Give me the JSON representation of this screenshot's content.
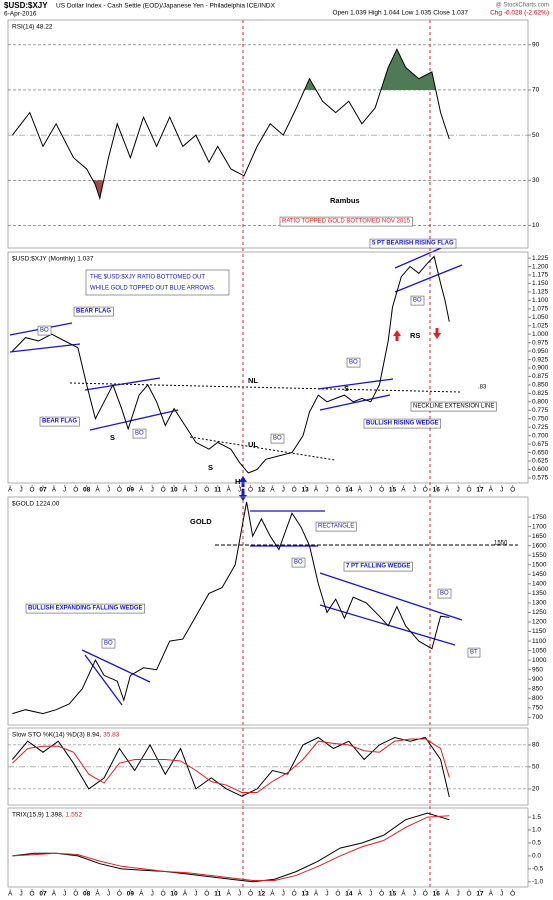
{
  "header": {
    "symbol": "$USD:$XJY",
    "description": "US Dollar Index - Cash Settle (EOD)/Japanese Yen - Philadelphia ICE/INDX",
    "date": "6-Apr-2016",
    "quote": "Open 1.039 High 1.044 Low 1.035 Close 1.037",
    "change": "Chg -0.028 (-2.62%)",
    "watermark": "@ StockCharts.com"
  },
  "chart_data": [
    {
      "type": "line",
      "label": "RSI(14) 48.22",
      "ylim": [
        0,
        101
      ],
      "yticks": [
        90,
        70,
        50,
        30,
        10
      ],
      "grid": true,
      "overbought_color": "#4e7a55",
      "oversold_color": "#a04a4a",
      "x": [
        2006.3,
        2006.7,
        2007.0,
        2007.3,
        2007.7,
        2008.0,
        2008.2,
        2008.3,
        2008.5,
        2008.7,
        2009.0,
        2009.3,
        2009.6,
        2009.9,
        2010.2,
        2010.5,
        2010.8,
        2011.0,
        2011.3,
        2011.6,
        2011.9,
        2012.2,
        2012.5,
        2012.8,
        2013.1,
        2013.4,
        2013.7,
        2014.0,
        2014.3,
        2014.6,
        2014.9,
        2015.1,
        2015.3,
        2015.6,
        2015.9,
        2016.1,
        2016.3
      ],
      "series": [
        {
          "color": "#000000",
          "values": [
            50,
            60,
            45,
            55,
            40,
            35,
            28,
            22,
            40,
            55,
            40,
            58,
            45,
            58,
            45,
            50,
            38,
            45,
            35,
            32,
            45,
            55,
            50,
            62,
            75,
            65,
            60,
            65,
            55,
            62,
            80,
            88,
            80,
            75,
            78,
            60,
            48.22
          ]
        }
      ],
      "annotations": [
        "Rambus",
        "RATIO TOPPED GOLD BOTTOMED NOV 2015"
      ]
    },
    {
      "type": "line",
      "label": "$USD:$XJY (Monthly) 1.037",
      "ylim": [
        0.56,
        1.243
      ],
      "yticks": [
        1.225,
        {
          "value": 1.2,
          "label": "1.200"
        },
        1.175,
        {
          "value": 1.15,
          "label": "1.150"
        },
        1.125,
        {
          "value": 1.1,
          "label": "1.100"
        },
        1.075,
        {
          "value": 1.05,
          "label": "1.050"
        },
        1.025,
        {
          "value": 1.0,
          "label": "1.000"
        },
        0.975,
        {
          "value": 0.95,
          "label": "0.950"
        },
        0.925,
        {
          "value": 0.9,
          "label": "0.900"
        },
        0.875,
        {
          "value": 0.85,
          "label": "0.850"
        },
        0.825,
        {
          "value": 0.8,
          "label": "0.800"
        },
        0.775,
        {
          "value": 0.75,
          "label": "0.750"
        },
        0.725,
        {
          "value": 0.7,
          "label": "0.700"
        },
        0.675,
        {
          "value": 0.65,
          "label": "0.650"
        },
        0.625,
        {
          "value": 0.6,
          "label": "0.600"
        },
        0.575
      ],
      "xlim": [
        2006.2,
        2018.1
      ],
      "xticks": [
        {
          "value": 2006.25,
          "label": "A"
        },
        {
          "value": 2006.5,
          "label": "J"
        },
        {
          "value": 2006.75,
          "label": "O"
        },
        {
          "value": 2007,
          "label": "07"
        },
        {
          "value": 2007.25,
          "label": "A"
        },
        {
          "value": 2007.5,
          "label": "J"
        },
        {
          "value": 2007.75,
          "label": "O"
        },
        {
          "value": 2008,
          "label": "08"
        },
        {
          "value": 2008.25,
          "label": "A"
        },
        {
          "value": 2008.5,
          "label": "J"
        },
        {
          "value": 2008.75,
          "label": "O"
        },
        {
          "value": 2009,
          "label": "09"
        },
        {
          "value": 2009.25,
          "label": "A"
        },
        {
          "value": 2009.5,
          "label": "J"
        },
        {
          "value": 2009.75,
          "label": "O"
        },
        {
          "value": 2010,
          "label": "10"
        },
        {
          "value": 2010.25,
          "label": "A"
        },
        {
          "value": 2010.5,
          "label": "J"
        },
        {
          "value": 2010.75,
          "label": "O"
        },
        {
          "value": 2011,
          "label": "11"
        },
        {
          "value": 2011.25,
          "label": "A"
        },
        {
          "value": 2011.5,
          "label": "J"
        },
        {
          "value": 2011.75,
          "label": "O"
        },
        {
          "value": 2012,
          "label": "12"
        },
        {
          "value": 2012.25,
          "label": "A"
        },
        {
          "value": 2012.5,
          "label": "J"
        },
        {
          "value": 2012.75,
          "label": "O"
        },
        {
          "value": 2013,
          "label": "13"
        },
        {
          "value": 2013.25,
          "label": "A"
        },
        {
          "value": 2013.5,
          "label": "J"
        },
        {
          "value": 2013.75,
          "label": "O"
        },
        {
          "value": 2014,
          "label": "14"
        },
        {
          "value": 2014.25,
          "label": "A"
        },
        {
          "value": 2014.5,
          "label": "J"
        },
        {
          "value": 2014.75,
          "label": "O"
        },
        {
          "value": 2015,
          "label": "15"
        },
        {
          "value": 2015.25,
          "label": "A"
        },
        {
          "value": 2015.5,
          "label": "J"
        },
        {
          "value": 2015.75,
          "label": "O"
        },
        {
          "value": 2016,
          "label": "16"
        },
        {
          "value": 2016.25,
          "label": "A"
        },
        {
          "value": 2016.5,
          "label": "J"
        },
        {
          "value": 2016.75,
          "label": "O"
        },
        {
          "value": 2017,
          "label": "17"
        },
        {
          "value": 2017.25,
          "label": "A"
        },
        {
          "value": 2017.5,
          "label": "J"
        },
        {
          "value": 2017.75,
          "label": "O"
        }
      ],
      "x": [
        2006.3,
        2006.6,
        2006.9,
        2007.2,
        2007.5,
        2007.8,
        2008.0,
        2008.2,
        2008.4,
        2008.6,
        2008.8,
        2008.95,
        2009.2,
        2009.4,
        2009.6,
        2009.8,
        2010.0,
        2010.3,
        2010.5,
        2010.8,
        2011.0,
        2011.3,
        2011.5,
        2011.7,
        2011.9,
        2012.1,
        2012.4,
        2012.7,
        2012.95,
        2013.1,
        2013.3,
        2013.5,
        2013.7,
        2013.9,
        2014.1,
        2014.3,
        2014.5,
        2014.7,
        2014.9,
        2015.0,
        2015.2,
        2015.4,
        2015.6,
        2015.8,
        2015.95,
        2016.1,
        2016.2,
        2016.3
      ],
      "series": [
        {
          "color": "#000000",
          "values": [
            0.95,
            0.99,
            0.98,
            1.0,
            0.98,
            0.96,
            0.85,
            0.75,
            0.8,
            0.85,
            0.78,
            0.72,
            0.82,
            0.85,
            0.8,
            0.73,
            0.78,
            0.72,
            0.68,
            0.66,
            0.68,
            0.66,
            0.62,
            0.59,
            0.6,
            0.63,
            0.64,
            0.65,
            0.7,
            0.77,
            0.82,
            0.8,
            0.81,
            0.82,
            0.8,
            0.81,
            0.8,
            0.85,
            0.98,
            1.08,
            1.17,
            1.2,
            1.18,
            1.21,
            1.23,
            1.15,
            1.1,
            1.037
          ]
        }
      ],
      "annotations": [
        "THE $USD:$XJY RATIO BOTTOMED OUT",
        "WHILE GOLD TOPPED OUT BLUE ARROWS.",
        "BEAR FLAG",
        "BO",
        "BEAR FLAG",
        "S",
        "BO",
        "NL",
        "S",
        "UL",
        "H",
        "BO",
        "BO",
        "S",
        "BULLISH RISING WEDGE",
        "NECKLINE EXTENSION LINE",
        ".83",
        "5 PT BEARISH RISING FLAG",
        "BO",
        "RS"
      ]
    },
    {
      "type": "line",
      "label": "$GOLD 1224.00",
      "ylim": [
        660,
        1855
      ],
      "yticks": [
        1750,
        1700,
        1650,
        1600,
        1550,
        1500,
        1450,
        1400,
        1350,
        1300,
        1250,
        1200,
        1150,
        1100,
        1050,
        1000,
        950,
        900,
        850,
        800,
        750,
        700
      ],
      "x": [
        2006.3,
        2006.6,
        2007.0,
        2007.3,
        2007.6,
        2007.9,
        2008.2,
        2008.4,
        2008.7,
        2008.85,
        2009.0,
        2009.3,
        2009.6,
        2009.9,
        2010.2,
        2010.5,
        2010.8,
        2011.1,
        2011.4,
        2011.66,
        2011.8,
        2012.0,
        2012.2,
        2012.4,
        2012.7,
        2012.9,
        2013.1,
        2013.3,
        2013.5,
        2013.7,
        2013.9,
        2014.1,
        2014.4,
        2014.7,
        2014.9,
        2015.1,
        2015.3,
        2015.6,
        2015.9,
        2016.1,
        2016.3
      ],
      "series": [
        {
          "color": "#000000",
          "values": [
            720,
            740,
            720,
            740,
            770,
            850,
            1000,
            920,
            890,
            790,
            920,
            960,
            950,
            1100,
            1110,
            1230,
            1350,
            1380,
            1500,
            1830,
            1650,
            1740,
            1650,
            1580,
            1770,
            1700,
            1600,
            1400,
            1250,
            1320,
            1220,
            1330,
            1300,
            1230,
            1180,
            1280,
            1180,
            1100,
            1060,
            1230,
            1224
          ]
        }
      ],
      "annotations": [
        "GOLD",
        "RECTANGLE",
        "BO",
        "1550",
        "7 PT FALLING WEDGE",
        "BO",
        "BT",
        "BULLISH EXPANDING FALLING WEDGE",
        "BO"
      ]
    },
    {
      "type": "line",
      "label": "Slow STO %K(14) %D(3) 8.94,",
      "signal_label": "35.83",
      "ylim": [
        -2,
        103
      ],
      "yticks": [
        80,
        50,
        20
      ],
      "grid": true,
      "x": [
        2006.3,
        2006.65,
        2007.0,
        2007.35,
        2007.7,
        2008.05,
        2008.4,
        2008.75,
        2009.1,
        2009.45,
        2009.8,
        2010.15,
        2010.5,
        2010.85,
        2011.2,
        2011.55,
        2011.9,
        2012.25,
        2012.6,
        2012.95,
        2013.3,
        2013.65,
        2014.0,
        2014.35,
        2014.7,
        2015.05,
        2015.4,
        2015.75,
        2016.1,
        2016.3
      ],
      "series": [
        {
          "color": "#000000",
          "values": [
            60,
            85,
            70,
            85,
            55,
            20,
            35,
            75,
            45,
            80,
            40,
            75,
            20,
            35,
            20,
            10,
            20,
            45,
            40,
            80,
            90,
            75,
            85,
            60,
            80,
            90,
            85,
            90,
            60,
            8.94
          ]
        },
        {
          "color": "#e02020",
          "values": [
            55,
            75,
            78,
            78,
            70,
            40,
            28,
            55,
            60,
            60,
            60,
            58,
            45,
            30,
            25,
            15,
            15,
            30,
            42,
            60,
            85,
            82,
            80,
            72,
            70,
            85,
            88,
            88,
            75,
            35.83
          ]
        }
      ]
    },
    {
      "type": "line",
      "label": "TRIX(15,9) 1.398,",
      "signal_label": "1.552",
      "ylim": [
        -1.2,
        1.85
      ],
      "yticks": [
        1.5,
        {
          "value": 1,
          "label": "1.0"
        },
        0.5,
        {
          "value": 0,
          "label": "0.0"
        },
        -0.5,
        {
          "value": -1,
          "label": "-1.0"
        }
      ],
      "x": [
        2006.3,
        2006.8,
        2007.3,
        2007.8,
        2008.3,
        2008.8,
        2009.3,
        2009.8,
        2010.3,
        2010.8,
        2011.3,
        2011.8,
        2012.3,
        2012.8,
        2013.3,
        2013.8,
        2014.3,
        2014.8,
        2015.3,
        2015.8,
        2016.3
      ],
      "series": [
        {
          "color": "#000000",
          "values": [
            0,
            0.1,
            0.1,
            0,
            -0.3,
            -0.5,
            -0.55,
            -0.6,
            -0.7,
            -0.8,
            -0.9,
            -1.0,
            -0.9,
            -0.6,
            -0.2,
            0.3,
            0.5,
            0.8,
            1.4,
            1.65,
            1.398
          ]
        },
        {
          "color": "#e02020",
          "values": [
            0,
            0.05,
            0.1,
            0.05,
            -0.2,
            -0.4,
            -0.5,
            -0.6,
            -0.65,
            -0.75,
            -0.85,
            -0.95,
            -0.95,
            -0.75,
            -0.4,
            0,
            0.35,
            0.6,
            1.1,
            1.5,
            1.552
          ]
        }
      ]
    }
  ]
}
